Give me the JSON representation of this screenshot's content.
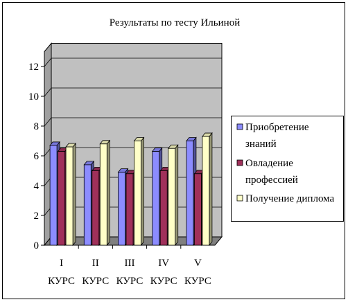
{
  "chart_data": {
    "type": "bar",
    "title": "Результаты по тесту Ильиной",
    "categories": [
      "I",
      "II",
      "III",
      "IV",
      "V"
    ],
    "category_sublabel": "КУРС",
    "series": [
      {
        "name": "Приобретение знаний",
        "values": [
          6.7,
          5.4,
          4.9,
          6.3,
          7.0
        ],
        "color": "#8c8cff"
      },
      {
        "name": "Овладение профессией",
        "values": [
          6.3,
          5.0,
          4.8,
          5.0,
          4.8
        ],
        "color": "#a0305a"
      },
      {
        "name": "Получение диплома",
        "values": [
          6.6,
          6.8,
          7.0,
          6.5,
          7.3
        ],
        "color": "#ffffc8"
      }
    ],
    "y_ticks": [
      "0",
      "2",
      "4",
      "6",
      "8",
      "10",
      "12"
    ],
    "ylim": [
      0,
      13
    ],
    "wall_color": "#c0c0c0",
    "floor_color": "#808080",
    "legend_position": "right",
    "grid": true,
    "three_d": true
  }
}
